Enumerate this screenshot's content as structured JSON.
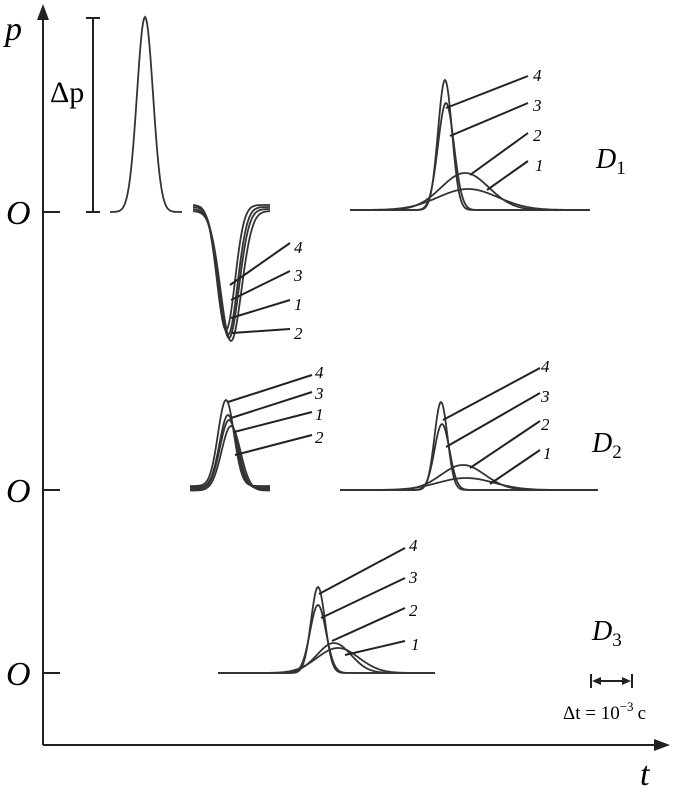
{
  "axes": {
    "y_label": "p",
    "x_label": "t"
  },
  "amplitude_label": "Δp",
  "origins": [
    "O",
    "O",
    "O"
  ],
  "detectors": [
    {
      "name": "D",
      "index": "1"
    },
    {
      "name": "D",
      "index": "2"
    },
    {
      "name": "D",
      "index": "3"
    }
  ],
  "groups": [
    {
      "labels": [
        "4",
        "3",
        "2",
        "1"
      ]
    },
    {
      "labels": [
        "4",
        "3",
        "1",
        "2"
      ]
    },
    {
      "labels": [
        "4",
        "3",
        "1",
        "2"
      ]
    },
    {
      "labels": [
        "4",
        "3",
        "2",
        "1"
      ]
    },
    {
      "labels": [
        "4",
        "3",
        "2",
        "1"
      ]
    }
  ],
  "scale": {
    "prefix": "Δt = 10",
    "exponent": "−3",
    "unit": "c"
  }
}
